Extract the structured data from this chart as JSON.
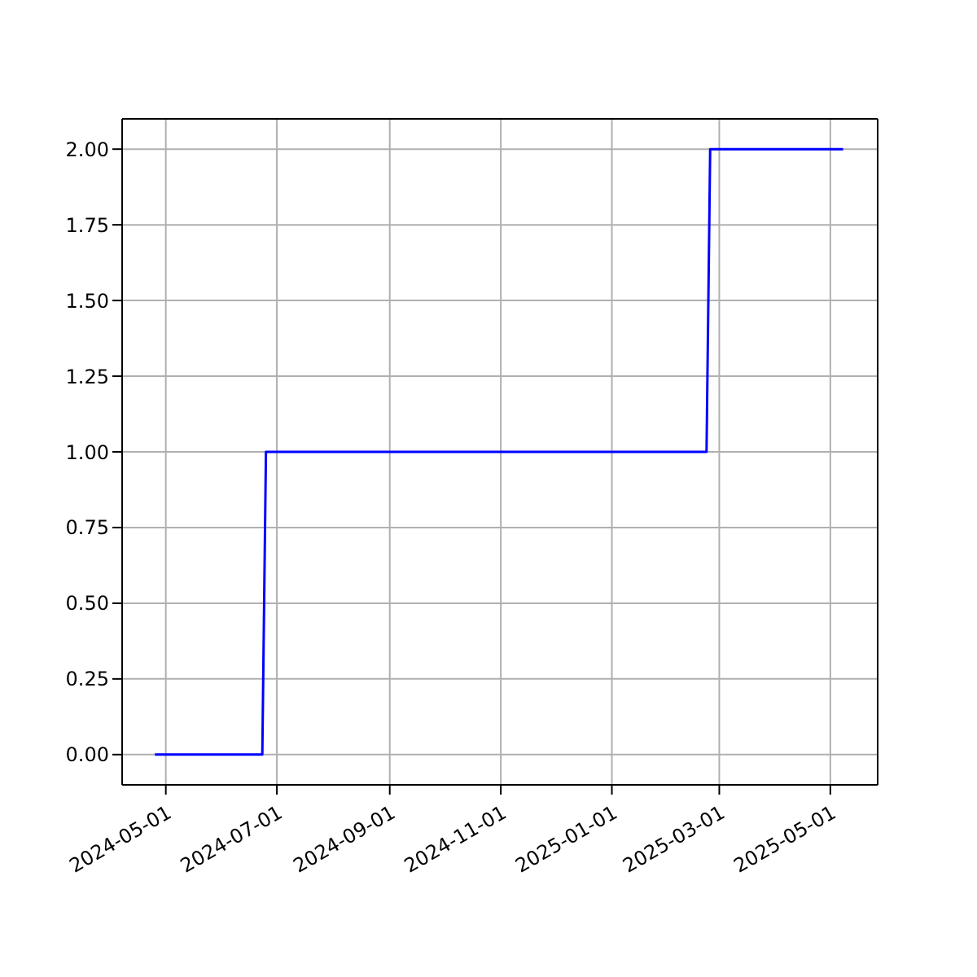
{
  "chart_data": {
    "type": "line",
    "x": [
      "2024-04-25",
      "2024-06-23",
      "2024-06-25",
      "2025-02-22",
      "2025-02-24",
      "2025-05-08"
    ],
    "series": [
      {
        "color": "#0000ff",
        "values": [
          0,
          0,
          1,
          1,
          2,
          2
        ]
      }
    ],
    "xlim": [
      "2024-04-07",
      "2025-05-27"
    ],
    "xticks": [
      "2024-05-01",
      "2024-07-01",
      "2024-09-01",
      "2024-11-01",
      "2025-01-01",
      "2025-03-01",
      "2025-05-01"
    ],
    "ylim": [
      -0.1,
      2.1
    ],
    "yticks": [
      {
        "value": 0,
        "label": "0.00"
      },
      {
        "value": 0.25,
        "label": "0.25"
      },
      {
        "value": 0.5,
        "label": "0.50"
      },
      {
        "value": 0.75,
        "label": "0.75"
      },
      {
        "value": 1,
        "label": "1.00"
      },
      {
        "value": 1.25,
        "label": "1.25"
      },
      {
        "value": 1.5,
        "label": "1.50"
      },
      {
        "value": 1.75,
        "label": "1.75"
      },
      {
        "value": 2,
        "label": "2.00"
      }
    ],
    "grid": true,
    "marker": "none",
    "line_style": "solid"
  }
}
